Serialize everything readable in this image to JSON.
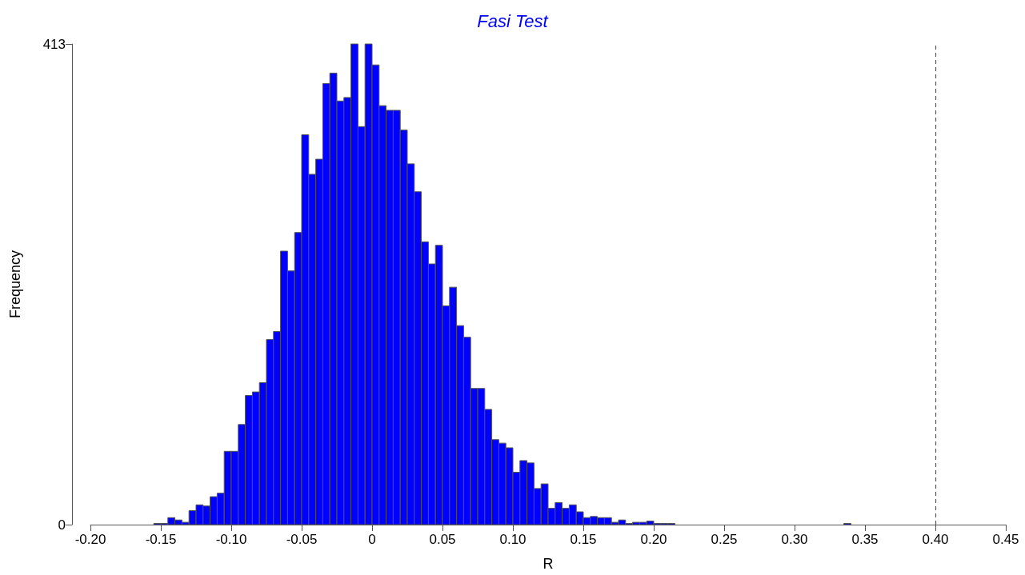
{
  "chart_data": {
    "type": "histogram",
    "title": "Fasi Test",
    "xlabel": "R",
    "ylabel": "Frequency",
    "bins": [
      -0.155,
      -0.15,
      -0.145,
      -0.14,
      -0.135,
      -0.13,
      -0.125,
      -0.12,
      -0.115,
      -0.11,
      -0.105,
      -0.1,
      -0.095,
      -0.09,
      -0.085,
      -0.08,
      -0.075,
      -0.07,
      -0.065,
      -0.06,
      -0.055,
      -0.05,
      -0.045,
      -0.04,
      -0.035,
      -0.03,
      -0.025,
      -0.02,
      -0.015,
      -0.01,
      -0.005,
      0,
      0.005,
      0.01,
      0.015,
      0.02,
      0.025,
      0.03,
      0.035,
      0.04,
      0.045,
      0.05,
      0.055,
      0.06,
      0.065,
      0.07,
      0.075,
      0.08,
      0.085,
      0.09,
      0.095,
      0.1,
      0.105,
      0.11,
      0.115,
      0.12,
      0.125,
      0.13,
      0.135,
      0.14,
      0.145,
      0.15,
      0.155,
      0.16,
      0.165,
      0.17,
      0.175,
      0.18,
      0.185,
      0.19,
      0.195,
      0.2,
      0.205,
      0.21,
      0.215,
      0.22,
      0.225,
      0.23,
      0.235,
      0.24,
      0.245,
      0.25,
      0.255,
      0.26,
      0.265,
      0.27,
      0.275,
      0.28,
      0.285,
      0.29,
      0.295,
      0.3,
      0.305,
      0.31,
      0.315,
      0.32,
      0.325,
      0.33,
      0.335,
      0.34
    ],
    "values": [
      1,
      1,
      6,
      4,
      2,
      12,
      17,
      16,
      24,
      27,
      63,
      63,
      86,
      111,
      114,
      122,
      159,
      166,
      235,
      218,
      251,
      335,
      301,
      314,
      379,
      388,
      364,
      367,
      413,
      342,
      413,
      395,
      360,
      356,
      356,
      339,
      310,
      286,
      243,
      224,
      240,
      188,
      204,
      171,
      161,
      117,
      117,
      99,
      73,
      70,
      66,
      45,
      55,
      53,
      31,
      35,
      14,
      19,
      14,
      17,
      11,
      6,
      7,
      6,
      6,
      2,
      4,
      1,
      2,
      2,
      3,
      1,
      1,
      1,
      0,
      0,
      0,
      0,
      0,
      0,
      0,
      0,
      0,
      0,
      0,
      0,
      0,
      0,
      0,
      0,
      0,
      0,
      0,
      0,
      0,
      0,
      0,
      0,
      1
    ],
    "color": "#0000ff",
    "xlim": [
      -0.2,
      0.45
    ],
    "xticks": [
      {
        "value": -0.2,
        "label": "-0.20"
      },
      {
        "value": -0.15,
        "label": "-0.15"
      },
      {
        "value": -0.1,
        "label": "-0.10"
      },
      {
        "value": -0.05,
        "label": "-0.05"
      },
      0,
      {
        "value": 0.05,
        "label": "0.05"
      },
      {
        "value": 0.1,
        "label": "0.10"
      },
      {
        "value": 0.15,
        "label": "0.15"
      },
      {
        "value": 0.2,
        "label": "0.20"
      },
      {
        "value": 0.25,
        "label": "0.25"
      },
      {
        "value": 0.3,
        "label": "0.30"
      },
      {
        "value": 0.35,
        "label": "0.35"
      },
      {
        "value": 0.4,
        "label": "0.40"
      },
      {
        "value": 0.45,
        "label": "0.45"
      }
    ],
    "ylim": [
      0,
      413
    ],
    "yticks": [
      0,
      413
    ],
    "ref_lines": [
      {
        "axis": "x",
        "value": 0.4,
        "color": "#555555",
        "line_style": "dashed"
      }
    ]
  }
}
